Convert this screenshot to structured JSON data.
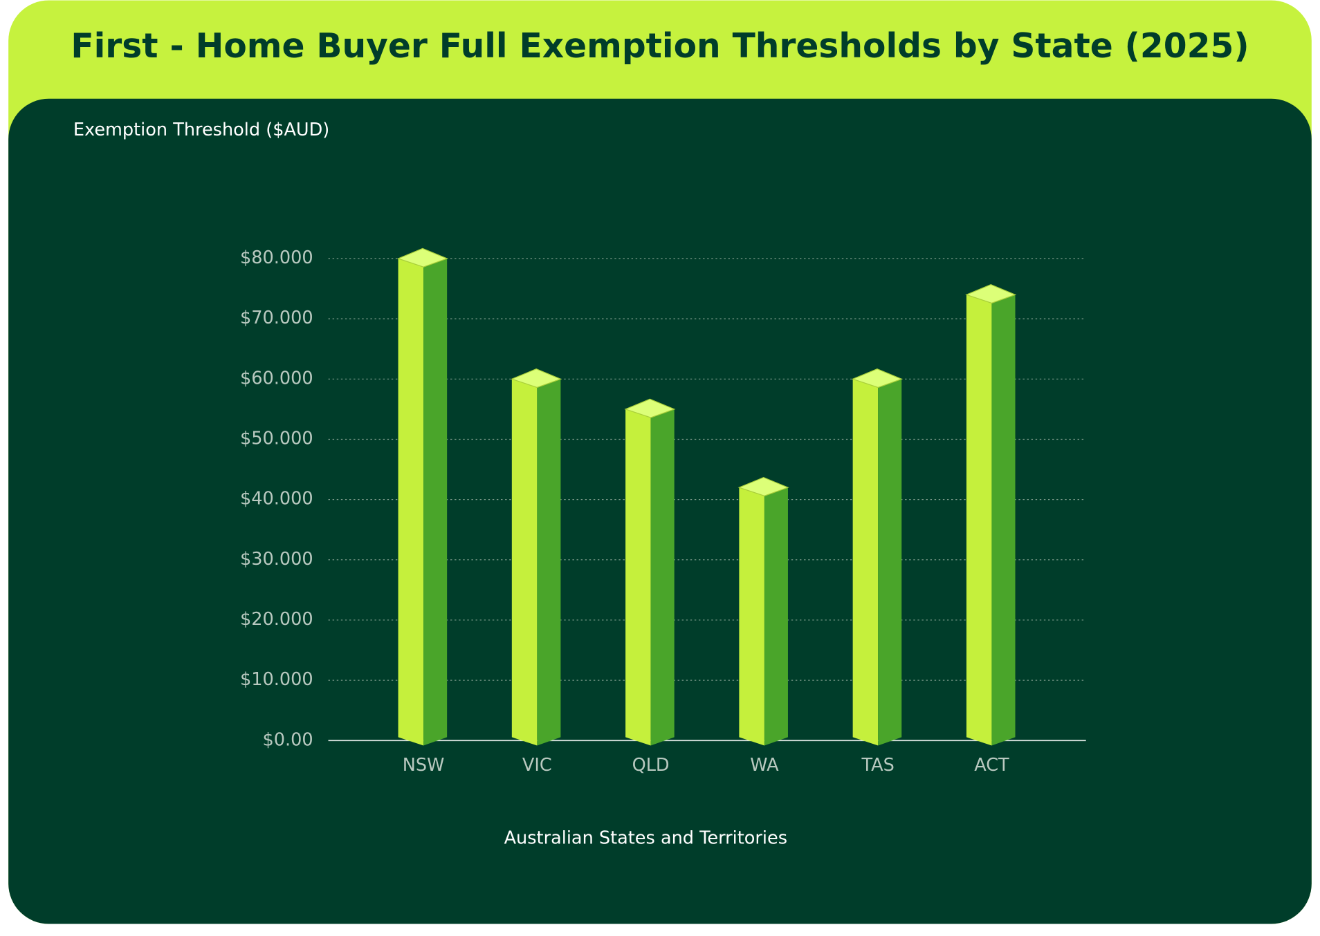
{
  "chart_data": {
    "type": "bar3d",
    "title": "First - Home Buyer Full Exemption Thresholds by State (2025)",
    "y_axis_label": "Exemption Threshold ($AUD)",
    "x_axis_label": "Australian States and Territories",
    "categories": [
      "NSW",
      "VIC",
      "QLD",
      "WA",
      "TAS",
      "ACT"
    ],
    "values": [
      80000,
      60000,
      55000,
      42000,
      60000,
      74000
    ],
    "color": "#c5f03c",
    "ylim": [
      0,
      80000
    ],
    "yticks": [
      {
        "value": 0,
        "label": "$0.00"
      },
      {
        "value": 10000,
        "label": "$10.000"
      },
      {
        "value": 20000,
        "label": "$20.000"
      },
      {
        "value": 30000,
        "label": "$30.000"
      },
      {
        "value": 40000,
        "label": "$40.000"
      },
      {
        "value": 50000,
        "label": "$50.000"
      },
      {
        "value": 60000,
        "label": "$60.000"
      },
      {
        "value": 70000,
        "label": "$70.000"
      },
      {
        "value": 80000,
        "label": "$80.000"
      }
    ],
    "grid": true
  }
}
